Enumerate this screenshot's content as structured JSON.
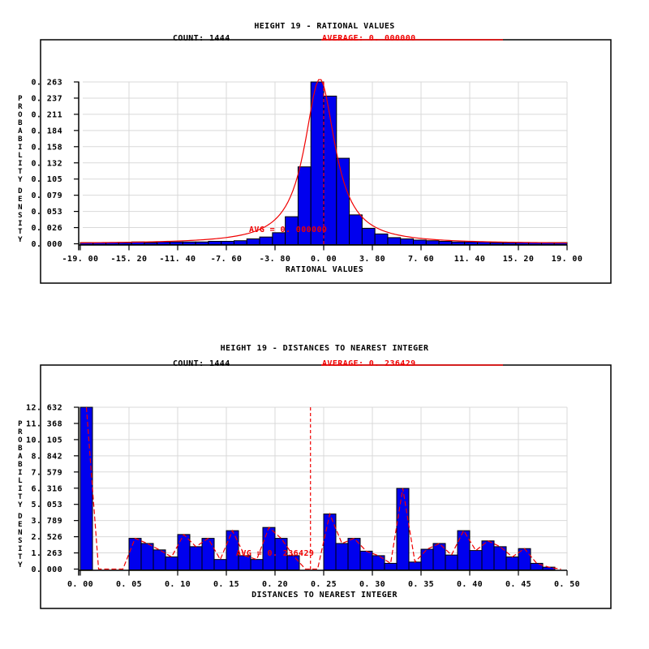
{
  "page_background": "#ffffff",
  "colors": {
    "bar_fill": "#0000ee",
    "bar_stroke": "#000000",
    "curve_red": "#f00000",
    "grid": "#d9d9d9",
    "axis": "#000000",
    "text": "#000000"
  },
  "chart_data": [
    {
      "type": "bar",
      "title": "HEIGHT 19 - RATIONAL VALUES",
      "header": {
        "count_label": "COUNT: 1444",
        "average_label": "AVERAGE: 0. 000000"
      },
      "count": 1444,
      "average": 0.0,
      "xlabel": "RATIONAL VALUES",
      "ylabel": "PROBABILITY DENSITY",
      "xlim": [
        -19,
        19
      ],
      "ylim": [
        0,
        0.263
      ],
      "grid": true,
      "x_tick_values": [
        -19,
        -15.2,
        -11.4,
        -7.6,
        -3.8,
        0,
        3.8,
        7.6,
        11.4,
        15.2,
        19
      ],
      "x_tick_labels": [
        "-19. 00",
        "-15. 20",
        "-11. 40",
        "-7. 60",
        "-3. 80",
        "0. 00",
        "3. 80",
        "7. 60",
        "11. 40",
        "15. 20",
        "19. 00"
      ],
      "y_tick_values": [
        0.263,
        0.237,
        0.211,
        0.184,
        0.158,
        0.132,
        0.105,
        0.079,
        0.053,
        0.026,
        0.0
      ],
      "y_tick_labels": [
        "0. 263",
        "0. 237",
        "0. 211",
        "0. 184",
        "0. 158",
        "0. 132",
        "0. 105",
        "0. 079",
        "0. 053",
        "0. 026",
        "0. 000"
      ],
      "bins": {
        "start": -19,
        "width": 1.0,
        "heights": [
          0.002,
          0.002,
          0.002,
          0.002,
          0.003,
          0.002,
          0.003,
          0.003,
          0.003,
          0.003,
          0.004,
          0.004,
          0.005,
          0.008,
          0.011,
          0.018,
          0.044,
          0.125,
          0.263,
          0.24,
          0.139,
          0.047,
          0.025,
          0.016,
          0.01,
          0.008,
          0.006,
          0.005,
          0.004,
          0.003,
          0.003,
          0.003,
          0.002,
          0.002,
          0.002,
          0.002,
          0.002,
          0.002
        ]
      },
      "fit_curve": {
        "shape": "cauchy",
        "peak": 0.268,
        "center": -0.3,
        "gamma": 1.45,
        "style": "solid"
      },
      "average_line": {
        "x": 0.0,
        "style": "dashed",
        "label": "AVG = 0. 000000"
      }
    },
    {
      "type": "bar",
      "title": "HEIGHT 19 - DISTANCES TO NEAREST INTEGER",
      "header": {
        "count_label": "COUNT: 1444",
        "average_label": "AVERAGE: 0. 236429"
      },
      "count": 1444,
      "average": 0.236429,
      "xlabel": "DISTANCES TO NEAREST INTEGER",
      "ylabel": "PROBABILITY DENSITY",
      "xlim": [
        0,
        0.5
      ],
      "ylim": [
        0,
        12.632
      ],
      "grid": true,
      "x_tick_values": [
        0,
        0.05,
        0.1,
        0.15,
        0.2,
        0.25,
        0.3,
        0.35,
        0.4,
        0.45,
        0.5
      ],
      "x_tick_labels": [
        "0. 00",
        "0. 05",
        "0. 10",
        "0. 15",
        "0. 20",
        "0. 25",
        "0. 30",
        "0. 35",
        "0. 40",
        "0. 45",
        "0. 50"
      ],
      "y_tick_values": [
        12.632,
        11.368,
        10.105,
        8.842,
        7.579,
        6.316,
        5.053,
        3.789,
        2.526,
        1.263,
        0.0
      ],
      "y_tick_labels": [
        "12. 632",
        "11. 368",
        "10. 105",
        "8. 842",
        "7. 579",
        "6. 316",
        "5. 053",
        "3. 789",
        "2. 526",
        "1. 263",
        "0. 000"
      ],
      "bins": {
        "start": 0,
        "width": 0.0125,
        "heights": [
          12.632,
          0,
          0,
          0,
          2.4,
          2.0,
          1.5,
          0.95,
          2.7,
          1.75,
          2.4,
          0.75,
          3.0,
          1.05,
          0.75,
          3.25,
          2.4,
          1.05,
          0,
          0,
          4.3,
          2.0,
          2.4,
          1.4,
          1.05,
          0.45,
          6.3,
          0.55,
          1.55,
          2.0,
          1.1,
          3.0,
          1.45,
          2.2,
          1.75,
          0.95,
          1.6,
          0.45,
          0.15,
          0
        ],
        "note": "probability density, bin width 0.0125"
      },
      "fit_curve": {
        "shape": "polygon",
        "style": "dashed"
      },
      "average_line": {
        "x": 0.236429,
        "style": "dashed",
        "label": "AVG = 0. 236429"
      }
    }
  ]
}
